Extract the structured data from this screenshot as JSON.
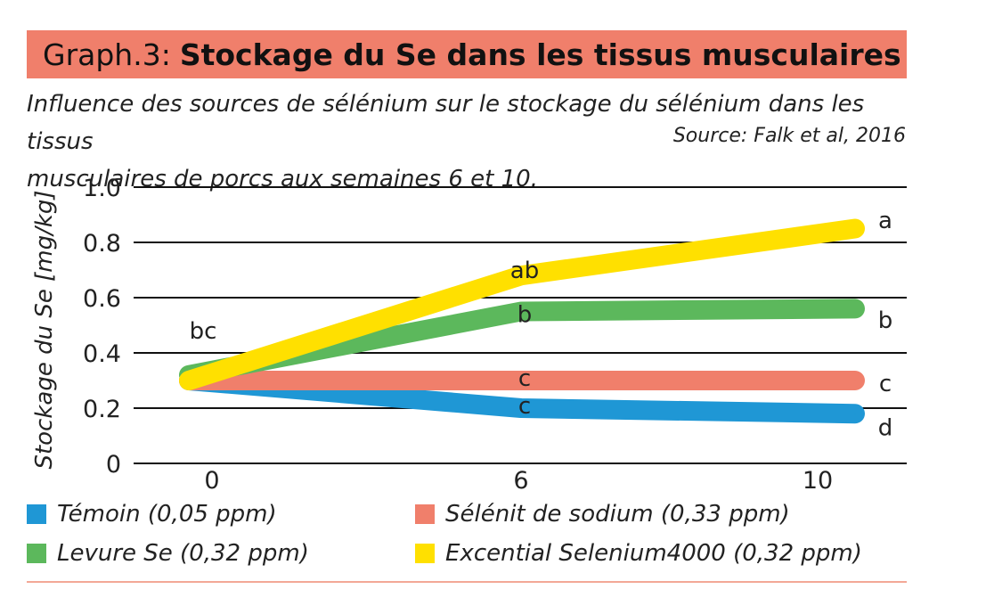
{
  "header": {
    "title_prefix": "Graph.3:",
    "title": "Stockage du Se dans les tissus musculaires",
    "subtitle_line1": "Influence des sources de sélénium sur le stockage du sélénium dans les tissus",
    "subtitle_line2": "musculaires de porcs aux semaines 6 et 10.",
    "source": "Source: Falk et al, 2016"
  },
  "chart_data": {
    "type": "line",
    "title": "Stockage du Se dans les tissus musculaires",
    "ylabel": "Stockage du Se  [mg/kg]",
    "xlabel": "",
    "x": [
      0,
      6,
      10
    ],
    "x_tick_labels": [
      "0",
      "6",
      "10"
    ],
    "ylim": [
      0,
      1.0
    ],
    "y_ticks": [
      0,
      0.2,
      0.4,
      0.6,
      0.8,
      1.0
    ],
    "y_tick_labels": [
      "0",
      "0.2",
      "0.4",
      "0.6",
      "0.8",
      "1.0"
    ],
    "grid": "horizontal",
    "legend_position": "bottom",
    "series": [
      {
        "name": "Témoin (0,05 ppm)",
        "color": "#1f97d5",
        "values": [
          0.3,
          0.2,
          0.18
        ]
      },
      {
        "name": "Sélénit de sodium (0,33 ppm)",
        "color": "#f07f6b",
        "values": [
          0.3,
          0.3,
          0.3
        ]
      },
      {
        "name": "Levure Se (0,32 ppm)",
        "color": "#5cb85c",
        "values": [
          0.32,
          0.55,
          0.56
        ]
      },
      {
        "name": "Excential Selenium4000 (0,32 ppm)",
        "color": "#ffe000",
        "values": [
          0.3,
          0.68,
          0.85
        ]
      }
    ],
    "annotations": [
      {
        "text": "bc",
        "x": 0,
        "y": 0.48
      },
      {
        "text": "ab",
        "x": 6,
        "y": 0.7
      },
      {
        "text": "b",
        "x": 6,
        "y": 0.54
      },
      {
        "text": "c",
        "x": 6,
        "y": 0.31
      },
      {
        "text": "c",
        "x": 6,
        "y": 0.21
      },
      {
        "text": "a",
        "x": 10,
        "y": 0.88
      },
      {
        "text": "b",
        "x": 10,
        "y": 0.52
      },
      {
        "text": "c",
        "x": 10,
        "y": 0.29
      },
      {
        "text": "d",
        "x": 10,
        "y": 0.13
      }
    ]
  }
}
